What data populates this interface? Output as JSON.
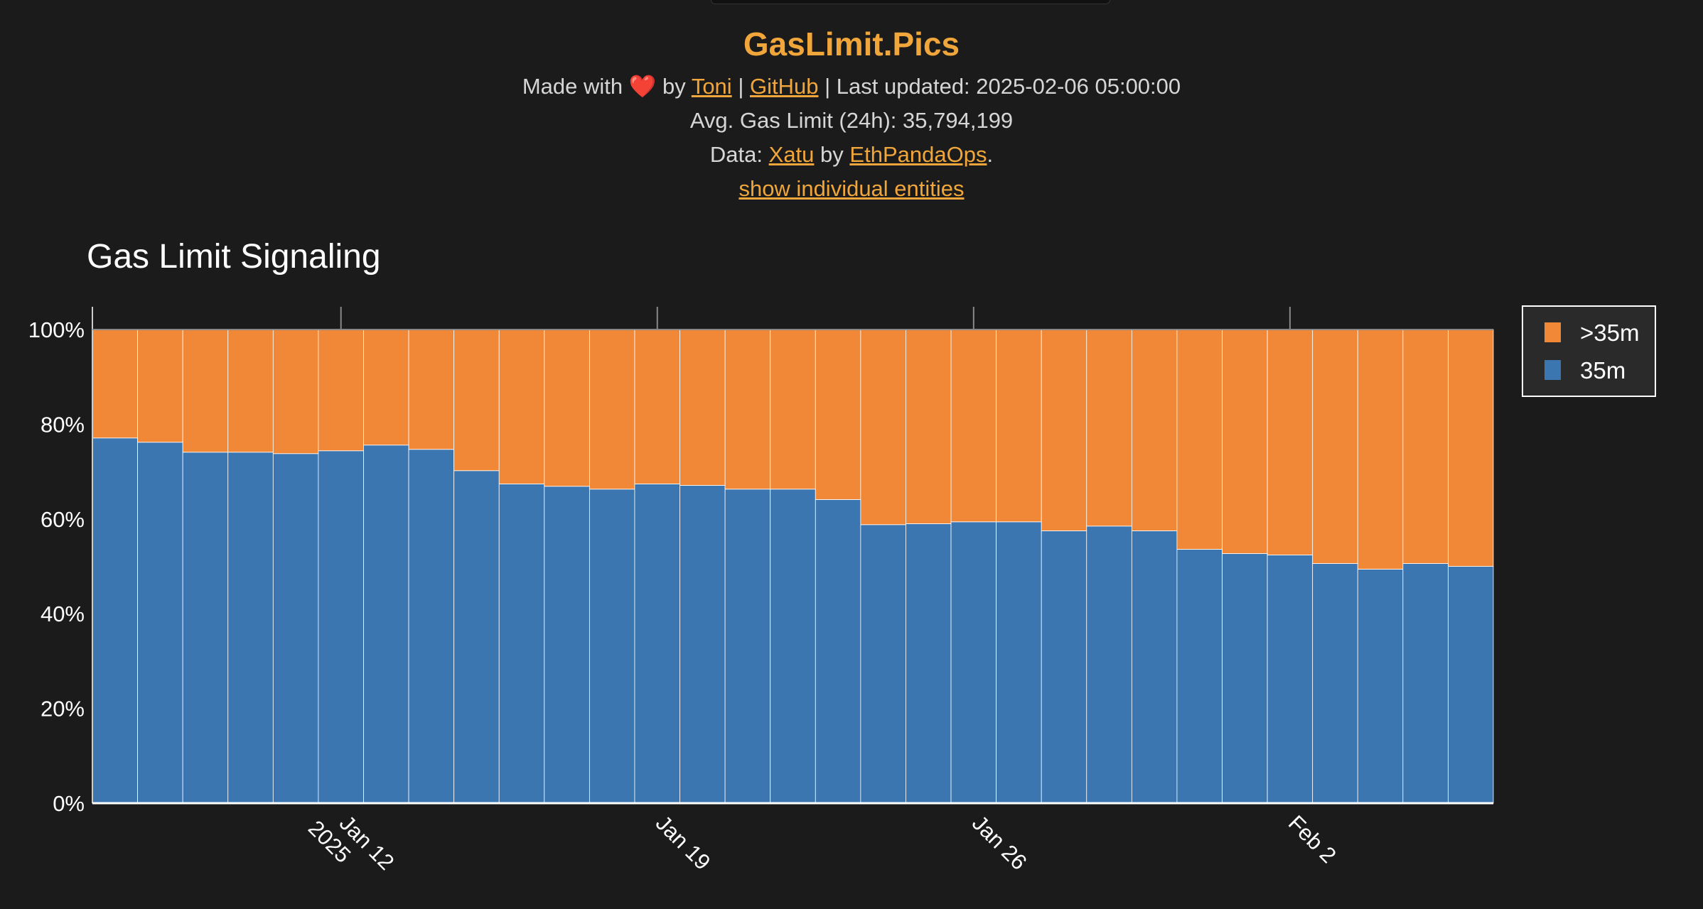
{
  "header": {
    "title": "GasLimit.Pics",
    "made_with": "Made with",
    "heart": "❤️",
    "by": "by",
    "author_link": "Toni",
    "sep1": "|",
    "github_link": "GitHub",
    "sep2": "|",
    "last_updated": "Last updated: 2025-02-06 05:00:00",
    "avg_gas": "Avg. Gas Limit (24h): 35,794,199",
    "data_prefix": "Data:",
    "xatu_link": "Xatu",
    "data_by": "by",
    "ethpandaops_link": "EthPandaOps",
    "data_suffix": ".",
    "entities_link": "show individual entities"
  },
  "colors": {
    "accent": "#f0a63a",
    "series_35m": "#3b76b0",
    "series_gt35m": "#f08838",
    "background": "#1b1b1b"
  },
  "chart_data": {
    "type": "bar",
    "stacked": true,
    "normalized": true,
    "title": "Gas Limit Signaling",
    "xlabel": "",
    "ylabel": "",
    "ylim": [
      0,
      100
    ],
    "yticks": [
      "0%",
      "20%",
      "40%",
      "60%",
      "80%",
      "100%"
    ],
    "xticks": [
      {
        "date": "2025-01-12",
        "label": "Jan 12",
        "sublabel": "2025"
      },
      {
        "date": "2025-01-19",
        "label": "Jan 19",
        "sublabel": ""
      },
      {
        "date": "2025-01-26",
        "label": "Jan 26",
        "sublabel": ""
      },
      {
        "date": "2025-02-02",
        "label": "Feb 2",
        "sublabel": ""
      }
    ],
    "categories": [
      "2025-01-07",
      "2025-01-08",
      "2025-01-09",
      "2025-01-10",
      "2025-01-11",
      "2025-01-12",
      "2025-01-13",
      "2025-01-14",
      "2025-01-15",
      "2025-01-16",
      "2025-01-17",
      "2025-01-18",
      "2025-01-19",
      "2025-01-20",
      "2025-01-21",
      "2025-01-22",
      "2025-01-23",
      "2025-01-24",
      "2025-01-25",
      "2025-01-26",
      "2025-01-27",
      "2025-01-28",
      "2025-01-29",
      "2025-01-30",
      "2025-01-31",
      "2025-02-01",
      "2025-02-02",
      "2025-02-03",
      "2025-02-04",
      "2025-02-05",
      "2025-02-06"
    ],
    "series": [
      {
        "name": "35m",
        "color": "#3b76b0",
        "values": [
          77.1,
          76.2,
          74.1,
          74.1,
          73.8,
          74.4,
          75.6,
          74.7,
          70.2,
          67.4,
          66.9,
          66.3,
          67.4,
          67.1,
          66.3,
          66.3,
          64.1,
          58.8,
          59.0,
          59.4,
          59.4,
          57.5,
          58.5,
          57.5,
          53.6,
          52.7,
          52.4,
          50.6,
          49.4,
          50.6,
          50.0
        ]
      },
      {
        "name": ">35m",
        "color": "#f08838",
        "values": [
          22.9,
          23.8,
          25.9,
          25.9,
          26.2,
          25.6,
          24.4,
          25.3,
          29.8,
          32.6,
          33.1,
          33.7,
          32.6,
          32.9,
          33.7,
          33.7,
          35.9,
          41.2,
          41.0,
          40.6,
          40.6,
          42.5,
          41.5,
          42.5,
          46.4,
          47.3,
          47.6,
          49.4,
          50.6,
          49.4,
          50.0
        ]
      }
    ],
    "legend": {
      "placement": "right-top",
      "entries": [
        ">35m",
        "35m"
      ]
    },
    "grid": false
  }
}
